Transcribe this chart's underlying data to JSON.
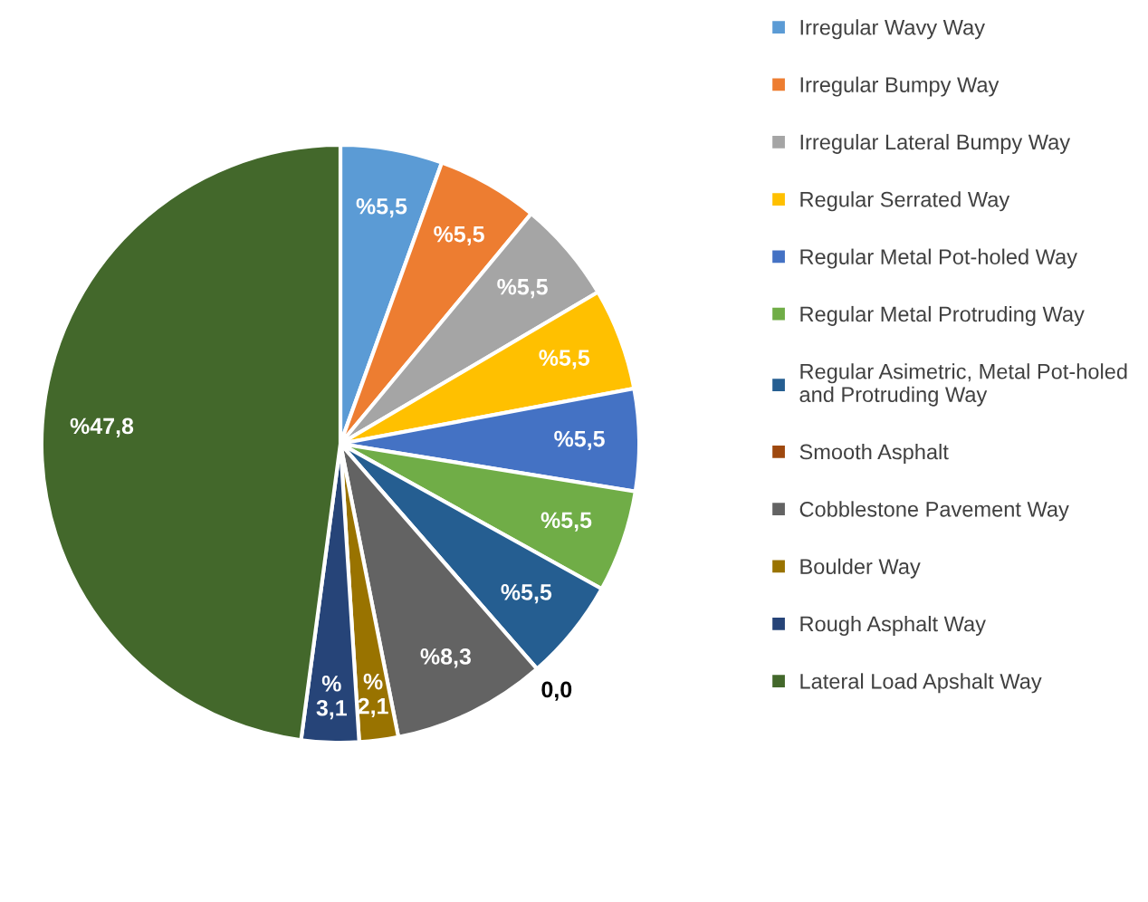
{
  "chart_data": {
    "type": "pie",
    "categories": [
      "Irregular Wavy Way",
      "Irregular Bumpy Way",
      "Irregular Lateral Bumpy Way",
      "Regular Serrated Way",
      "Regular Metal Pot-holed Way",
      "Regular Metal Protruding Way",
      "Regular Asimetric, Metal Pot-holed\nand Protruding Way",
      "Smooth Asphalt",
      "Cobblestone Pavement Way",
      "Boulder Way",
      "Rough Asphalt Way",
      "Lateral Load Apshalt Way"
    ],
    "values": [
      5.5,
      5.5,
      5.5,
      5.5,
      5.5,
      5.5,
      5.5,
      0.0,
      8.3,
      2.1,
      3.1,
      47.8
    ],
    "value_labels": [
      "%5,5",
      "%5,5",
      "%5,5",
      "%5,5",
      "%5,5",
      "%5,5",
      "%5,5",
      "0,0",
      "%8,3",
      "%\n2,1",
      "%\n3,1",
      "%47,8"
    ],
    "colors": [
      "#5b9bd5",
      "#ed7d31",
      "#a5a5a5",
      "#ffc000",
      "#4472c4",
      "#70ad47",
      "#255e91",
      "#9e480e",
      "#636363",
      "#997300",
      "#264478",
      "#43682b"
    ],
    "legend": "right"
  }
}
